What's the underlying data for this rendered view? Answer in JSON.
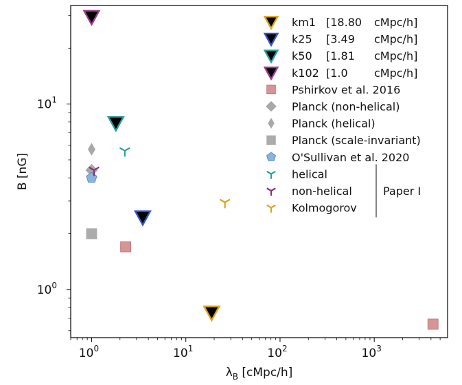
{
  "chart_data": {
    "type": "scatter",
    "xlabel_main": "λ",
    "xlabel_sub": "B",
    "xlabel_rest": " [cMpc/h]",
    "ylabel": "B [nG]",
    "xscale": "log",
    "yscale": "log",
    "xlim": [
      0.6,
      6000
    ],
    "ylim": [
      0.55,
      34
    ],
    "x_ticks": [
      {
        "value": 1,
        "base": "10",
        "exp": "0"
      },
      {
        "value": 10,
        "base": "10",
        "exp": "1"
      },
      {
        "value": 100,
        "base": "10",
        "exp": "2"
      },
      {
        "value": 1000,
        "base": "10",
        "exp": "3"
      }
    ],
    "y_ticks": [
      {
        "value": 1,
        "base": "10",
        "exp": "0"
      },
      {
        "value": 10,
        "base": "10",
        "exp": "1"
      }
    ],
    "grid": false,
    "legend_position": "top-right",
    "series": [
      {
        "name": "km1",
        "length": "[18.80",
        "unit": "cMpc/h]",
        "marker": "triangle-down",
        "fill": "#000000",
        "edge": "#e0a21f",
        "points": [
          {
            "x": 18.8,
            "y": 0.75
          }
        ]
      },
      {
        "name": "k25",
        "length": "[3.49",
        "unit": "cMpc/h]",
        "marker": "triangle-down",
        "fill": "#000000",
        "edge": "#3355cc",
        "points": [
          {
            "x": 3.49,
            "y": 2.45
          }
        ]
      },
      {
        "name": "k50",
        "length": "[1.81",
        "unit": "cMpc/h]",
        "marker": "triangle-down",
        "fill": "#000000",
        "edge": "#2a9d9d",
        "points": [
          {
            "x": 1.81,
            "y": 7.9
          }
        ]
      },
      {
        "name": "k102",
        "length": "[1.0",
        "unit": "cMpc/h]",
        "marker": "triangle-down",
        "fill": "#000000",
        "edge": "#9a3b8c",
        "points": [
          {
            "x": 1.0,
            "y": 29.5
          }
        ]
      },
      {
        "name": "Pshirkov et al. 2016",
        "marker": "square",
        "fill": "#d58f8f",
        "edge": "#b86a6a",
        "points": [
          {
            "x": 2.3,
            "y": 1.7
          },
          {
            "x": 4200,
            "y": 0.65
          }
        ]
      },
      {
        "name": "Planck (non-helical)",
        "marker": "diamond",
        "fill": "#a8a8a8",
        "edge": "#a8a8a8",
        "points": [
          {
            "x": 1.0,
            "y": 4.4
          }
        ]
      },
      {
        "name": "Planck (helical)",
        "marker": "thin-diamond",
        "fill": "#a8a8a8",
        "edge": "#a8a8a8",
        "points": [
          {
            "x": 1.0,
            "y": 5.7
          }
        ]
      },
      {
        "name": "Planck (scale-invariant)",
        "marker": "square",
        "fill": "#a8a8a8",
        "edge": "#a8a8a8",
        "points": [
          {
            "x": 1.0,
            "y": 2.0
          }
        ]
      },
      {
        "name": "O'Sullivan et al. 2020",
        "marker": "pentagon",
        "fill": "#88b4de",
        "edge": "#5a8fc0",
        "points": [
          {
            "x": 1.0,
            "y": 4.0
          }
        ]
      },
      {
        "name": "helical",
        "marker": "tri-down",
        "fill": "none",
        "edge": "#2a9d9d",
        "points": [
          {
            "x": 2.25,
            "y": 5.6
          }
        ]
      },
      {
        "name": "non-helical",
        "marker": "tri-down",
        "fill": "none",
        "edge": "#8a2e7a",
        "points": [
          {
            "x": 1.06,
            "y": 4.4
          }
        ]
      },
      {
        "name": "Kolmogorov",
        "marker": "tri-down",
        "fill": "none",
        "edge": "#d9a620",
        "points": [
          {
            "x": 26,
            "y": 2.95
          }
        ]
      }
    ],
    "legend_group_label": "Paper I"
  }
}
